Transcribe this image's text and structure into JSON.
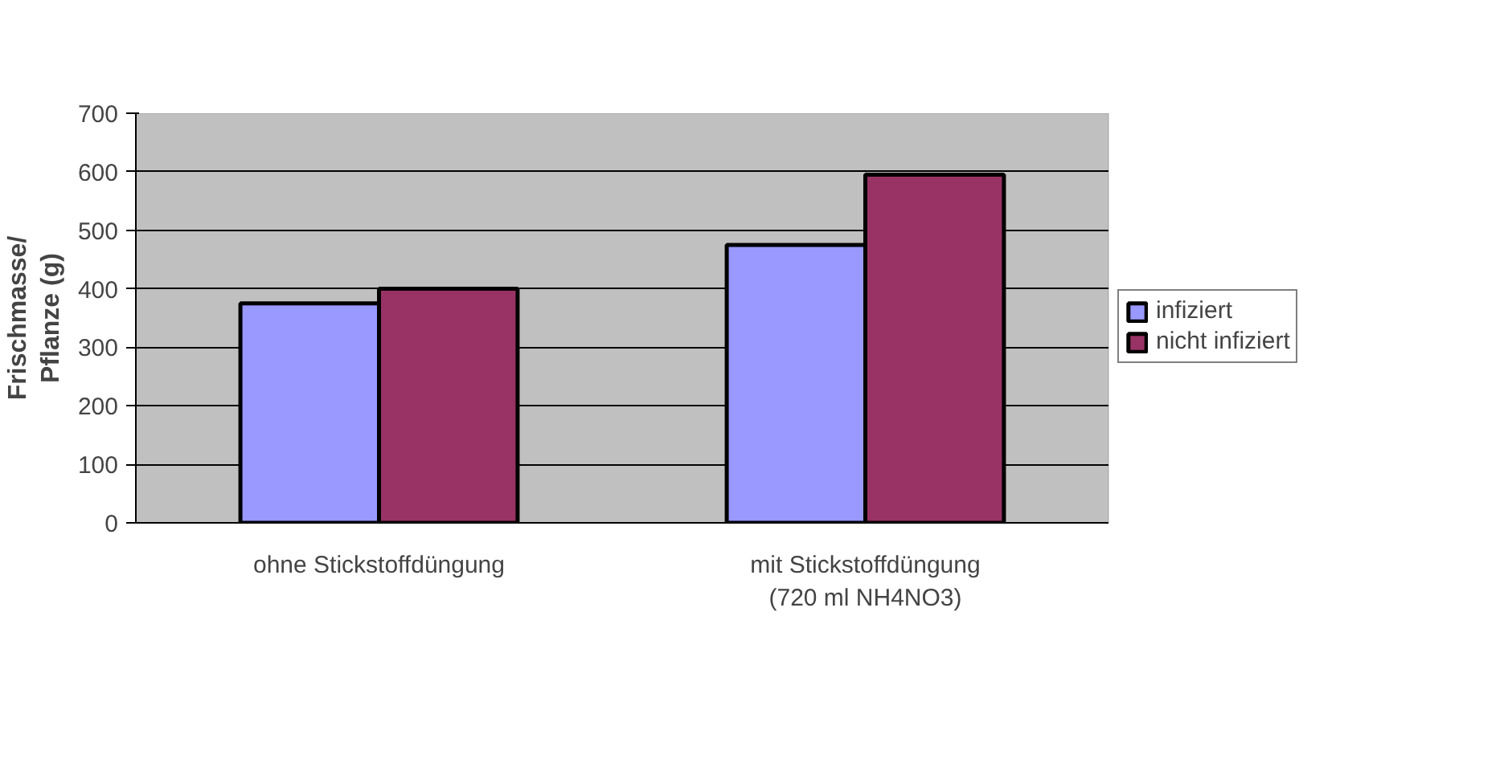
{
  "chart_data": {
    "type": "bar",
    "ylabel": "Frischmasse/\nPflanze (g)",
    "categories": [
      "ohne Stickstoffdüngung",
      "mit Stickstoffdüngung\n(720 ml NH4NO3)"
    ],
    "series": [
      {
        "name": "infiziert",
        "color": "#9999ff",
        "values": [
          375,
          475
        ]
      },
      {
        "name": "nicht infiziert",
        "color": "#993366",
        "values": [
          400,
          595
        ]
      }
    ],
    "ylim": [
      0,
      700
    ],
    "yticks": [
      0,
      100,
      200,
      300,
      400,
      500,
      600,
      700
    ],
    "grid": "y",
    "legend": "right"
  }
}
